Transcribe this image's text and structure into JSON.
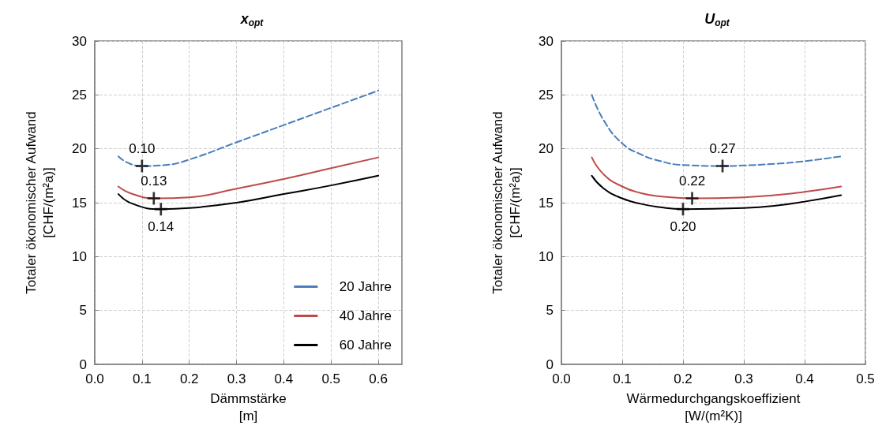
{
  "chart_data": [
    {
      "type": "line",
      "title": "x$_{opt}$",
      "xlabel": "Dämmstärke\n[m]",
      "ylabel": "Totaler ökonomischer Aufwand\n[CHF/(m²a)]",
      "xlim": [
        0,
        0.65
      ],
      "xticks": [
        {
          "value": 0,
          "label": "0.0"
        },
        0.1,
        0.2,
        0.3,
        0.4,
        0.5,
        0.6
      ],
      "ylim": [
        0,
        30
      ],
      "yticks": [
        0,
        5,
        10,
        15,
        20,
        25,
        30
      ],
      "grid": true,
      "legend": "bottom right",
      "series": [
        {
          "name": "20 Jahre",
          "color": "#4a7ebb",
          "line_style": "dashed",
          "marker": "none",
          "x": [
            0.05,
            0.07,
            0.1,
            0.15,
            0.2,
            0.3,
            0.4,
            0.5,
            0.6
          ],
          "values": [
            19.3,
            18.7,
            18.4,
            18.5,
            19.0,
            20.6,
            22.2,
            23.8,
            25.4
          ]
        },
        {
          "name": "40 Jahre",
          "color": "#be4b48",
          "line_style": "solid",
          "marker": "none",
          "x": [
            0.05,
            0.08,
            0.13,
            0.2,
            0.3,
            0.4,
            0.5,
            0.6
          ],
          "values": [
            16.5,
            15.8,
            15.4,
            15.5,
            16.3,
            17.2,
            18.2,
            19.2
          ]
        },
        {
          "name": "60 Jahre",
          "color": "#000000",
          "line_style": "solid",
          "marker": "none",
          "x": [
            0.05,
            0.08,
            0.14,
            0.2,
            0.3,
            0.4,
            0.5,
            0.6
          ],
          "values": [
            15.8,
            14.9,
            14.4,
            14.5,
            15.0,
            15.8,
            16.6,
            17.5
          ]
        },
        {
          "type": "scatter",
          "color": "#000000",
          "marker": "cross",
          "x": [
            0.1,
            0.125,
            0.14
          ],
          "values": [
            18.4,
            15.4,
            14.4
          ]
        }
      ],
      "annotations": [
        {
          "text": "0.10",
          "x": 0.1,
          "y": 18.4
        },
        {
          "text": "0.13",
          "x": 0.125,
          "y": 15.4
        },
        {
          "text": "0.14",
          "x": 0.14,
          "y": 14.4
        }
      ]
    },
    {
      "type": "line",
      "title": "U$_{opt}$",
      "xlabel": "Wärmedurchgangskoeffizient\n[W/(m²K)]",
      "ylabel": "Totaler ökonomischer Aufwand\n[CHF/(m²a)]",
      "xlim": [
        0,
        0.5
      ],
      "xticks": [
        {
          "value": 0,
          "label": "0.0"
        },
        0.1,
        0.2,
        0.3,
        0.4,
        0.5
      ],
      "ylim": [
        0,
        30
      ],
      "yticks": [
        0,
        5,
        10,
        15,
        20,
        25,
        30
      ],
      "grid": true,
      "series": [
        {
          "color": "#4a7ebb",
          "line_style": "dashed",
          "marker": "none",
          "x": [
            0.05,
            0.07,
            0.1,
            0.13,
            0.16,
            0.2,
            0.27,
            0.3,
            0.35,
            0.4,
            0.46
          ],
          "values": [
            25.0,
            22.6,
            20.5,
            19.5,
            18.9,
            18.5,
            18.4,
            18.45,
            18.6,
            18.85,
            19.3
          ]
        },
        {
          "color": "#be4b48",
          "line_style": "solid",
          "marker": "none",
          "x": [
            0.05,
            0.07,
            0.1,
            0.13,
            0.16,
            0.22,
            0.3,
            0.35,
            0.4,
            0.46
          ],
          "values": [
            19.2,
            17.6,
            16.5,
            15.9,
            15.6,
            15.4,
            15.5,
            15.7,
            16.0,
            16.5
          ]
        },
        {
          "color": "#000000",
          "line_style": "solid",
          "marker": "none",
          "x": [
            0.05,
            0.07,
            0.1,
            0.13,
            0.16,
            0.2,
            0.3,
            0.35,
            0.4,
            0.46
          ],
          "values": [
            17.5,
            16.3,
            15.4,
            14.9,
            14.6,
            14.4,
            14.5,
            14.7,
            15.1,
            15.7
          ]
        },
        {
          "type": "scatter",
          "color": "#000000",
          "marker": "cross",
          "x": [
            0.265,
            0.215,
            0.2
          ],
          "values": [
            18.4,
            15.4,
            14.4
          ]
        }
      ],
      "annotations": [
        {
          "text": "0.27",
          "x": 0.265,
          "y": 18.4
        },
        {
          "text": "0.22",
          "x": 0.215,
          "y": 15.4
        },
        {
          "text": "0.20",
          "x": 0.2,
          "y": 14.4
        }
      ]
    }
  ]
}
